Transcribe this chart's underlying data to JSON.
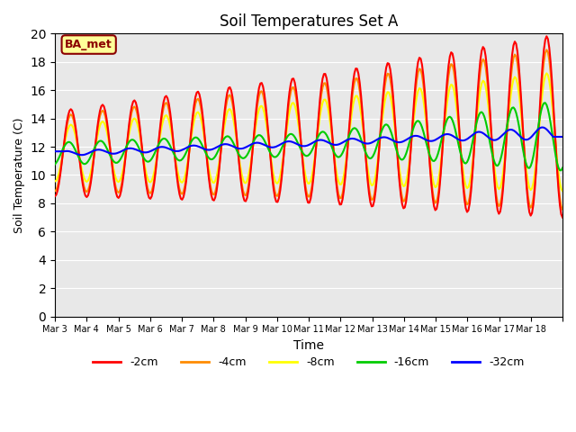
{
  "title": "Soil Temperatures Set A",
  "xlabel": "Time",
  "ylabel": "Soil Temperature (C)",
  "ylim": [
    0,
    20
  ],
  "yticks": [
    0,
    2,
    4,
    6,
    8,
    10,
    12,
    14,
    16,
    18,
    20
  ],
  "colors": {
    "-2cm": "#FF0000",
    "-4cm": "#FF8C00",
    "-8cm": "#FFFF00",
    "-16cm": "#00CC00",
    "-32cm": "#0000FF"
  },
  "legend_labels": [
    "-2cm",
    "-4cm",
    "-8cm",
    "-16cm",
    "-32cm"
  ],
  "annotation_text": "BA_met",
  "annotation_color": "#8B0000",
  "annotation_bg": "#FFFF99",
  "xtick_labels": [
    "Mar 3",
    "Mar 4",
    "Mar 5",
    "Mar 6",
    "Mar 7",
    "Mar 8",
    "Mar 9",
    "Mar 10",
    "Mar 11",
    "Mar 12",
    "Mar 13",
    "Mar 14",
    "Mar 15",
    "Mar 16",
    "Mar 17",
    "Mar 18"
  ],
  "background_color": "#E8E8E8",
  "linewidth": 1.5
}
